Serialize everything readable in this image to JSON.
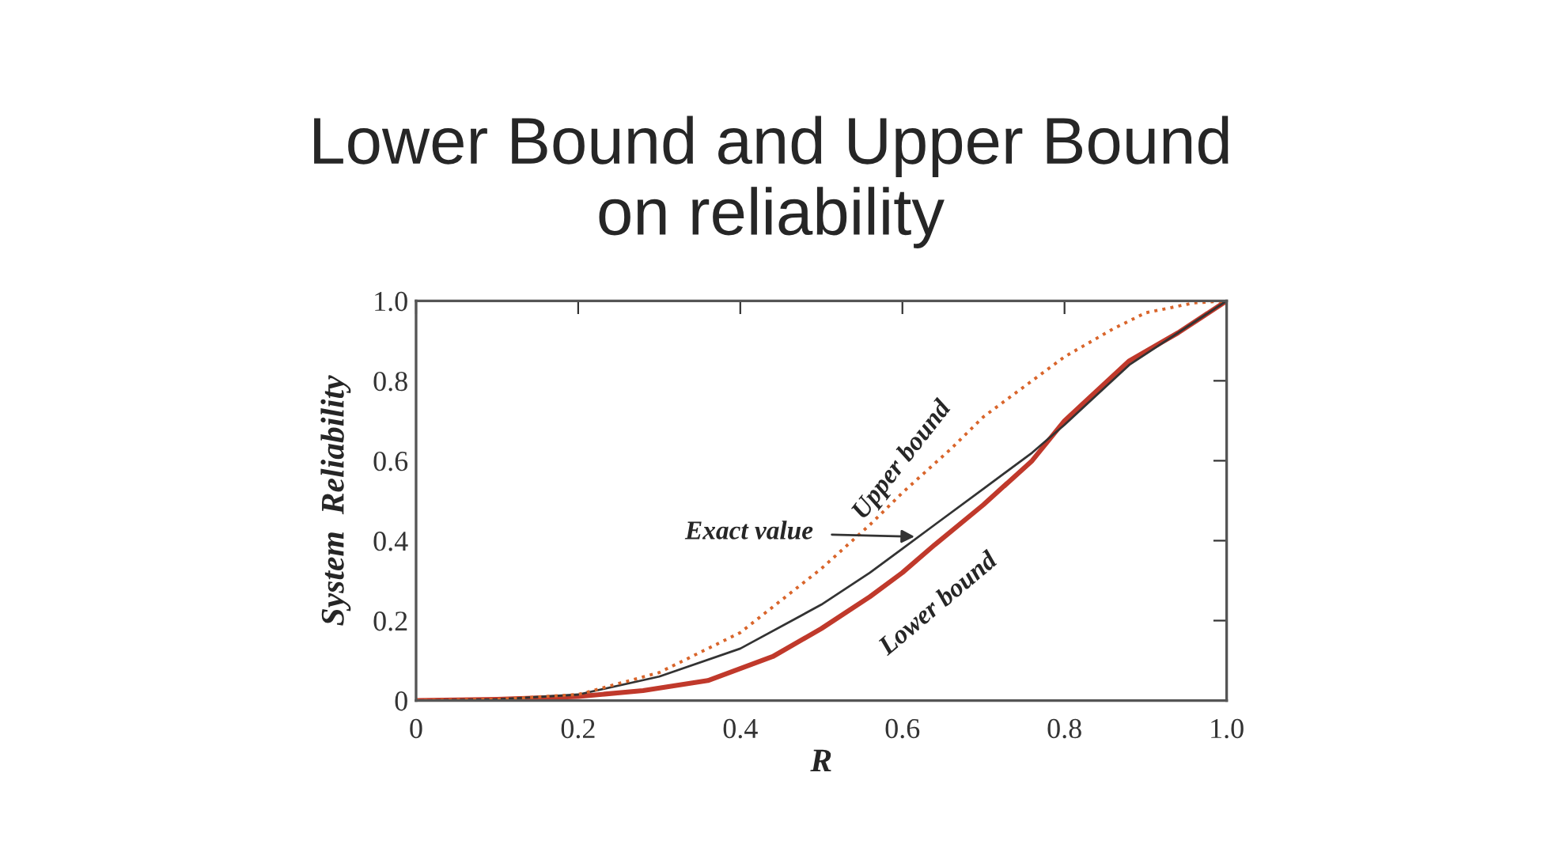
{
  "chart_data": {
    "type": "line",
    "title": "Lower Bound and Upper Bound\non reliability",
    "xlabel": "R",
    "ylabel": "System  Reliability",
    "xlim": [
      0,
      1
    ],
    "ylim": [
      0,
      1
    ],
    "xticks": [
      0,
      0.2,
      0.4,
      0.6,
      0.8,
      {
        "value": 1,
        "label": "1.0"
      }
    ],
    "yticks": [
      0,
      0.2,
      0.4,
      0.6,
      0.8,
      {
        "value": 1,
        "label": "1.0"
      }
    ],
    "grid": false,
    "legend": false,
    "marker": "none",
    "series": [
      {
        "color": "#c0392b",
        "line_style": "solid",
        "x": [
          0,
          0.1,
          0.2,
          0.28,
          0.36,
          0.44,
          0.5,
          0.56,
          0.6,
          0.64,
          0.7,
          0.76,
          0.8,
          0.88,
          0.94,
          1
        ],
        "values": [
          0,
          0.003,
          0.01,
          0.025,
          0.05,
          0.11,
          0.18,
          0.26,
          0.32,
          0.39,
          0.49,
          0.6,
          0.7,
          0.85,
          0.92,
          1
        ]
      },
      {
        "color": "#333333",
        "line_style": "solid",
        "x": [
          0,
          0.1,
          0.2,
          0.3,
          0.4,
          0.5,
          0.56,
          0.6,
          0.64,
          0.7,
          0.76,
          0.8,
          0.88,
          1
        ],
        "values": [
          0,
          0.003,
          0.015,
          0.06,
          0.13,
          0.24,
          0.32,
          0.38,
          0.44,
          0.53,
          0.62,
          0.69,
          0.84,
          1
        ]
      },
      {
        "color": "#d9652b",
        "line_style": "dotted",
        "x": [
          0,
          0.1,
          0.2,
          0.3,
          0.4,
          0.5,
          0.56,
          0.6,
          0.66,
          0.7,
          0.76,
          0.8,
          0.86,
          0.9,
          0.96,
          1
        ],
        "values": [
          0,
          0.003,
          0.015,
          0.07,
          0.17,
          0.33,
          0.44,
          0.52,
          0.63,
          0.71,
          0.8,
          0.86,
          0.93,
          0.97,
          0.995,
          1
        ]
      }
    ],
    "annotations": [
      "Exact value",
      "Upper bound",
      "Lower bound"
    ]
  }
}
